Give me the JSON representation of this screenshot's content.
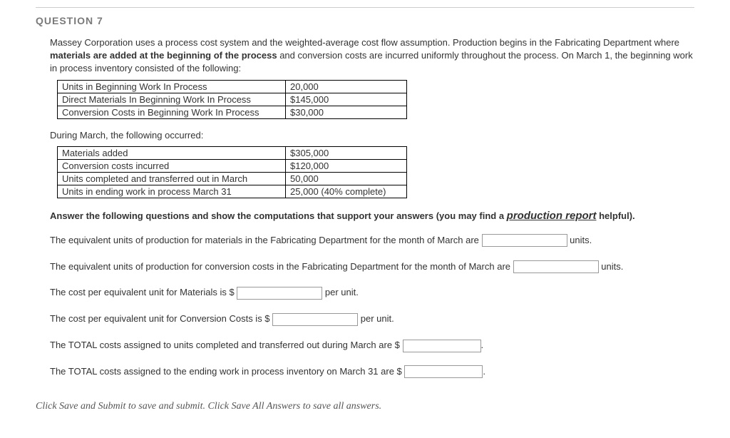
{
  "header": {
    "title": "QUESTION 7"
  },
  "intro": {
    "p1a": "Massey Corporation uses a process cost system and the weighted-average cost flow assumption. Production begins in the Fabricating Department where ",
    "p1b": "materials are added at the beginning of the process",
    "p1c": " and conversion costs are incurred uniformly throughout the process. On March 1, the beginning work in process inventory consisted of the following:"
  },
  "table1": {
    "rows": [
      {
        "label": "Units in Beginning Work In Process",
        "value": "20,000"
      },
      {
        "label": "Direct Materials In Beginning Work In Process",
        "value": "$145,000"
      },
      {
        "label": "Conversion Costs in Beginning Work In Process",
        "value": "$30,000"
      }
    ],
    "col1_width": 320,
    "col2_width": 170,
    "border_color": "#000000"
  },
  "mid_text": "During March, the following occurred:",
  "table2": {
    "rows": [
      {
        "label": "Materials added",
        "value": "$305,000"
      },
      {
        "label": "Conversion costs incurred",
        "value": "$120,000"
      },
      {
        "label": "Units completed and transferred out in March",
        "value": "50,000"
      },
      {
        "label": "Units in ending work in process March 31",
        "value": "25,000 (40% complete)"
      }
    ],
    "col1_width": 320,
    "col2_width": 170,
    "border_color": "#000000"
  },
  "answer_heading": {
    "pre": "Answer the following questions and show the computations that support your answers (you may find a ",
    "link": "production report",
    "post": " helpful)."
  },
  "lines": {
    "l1a": "The equivalent units of production for materials in the Fabricating Department for the month of March are ",
    "l1b": " units.",
    "l2a": "The equivalent units of production for conversion costs in the Fabricating Department for the month of March are ",
    "l2b": " units.",
    "l3a": "The cost per equivalent unit for Materials is $ ",
    "l3b": " per unit.",
    "l4a": "The cost per equivalent unit for Conversion Costs is $ ",
    "l4b": " per unit.",
    "l5a": "The TOTAL costs assigned to units completed and transferred out during March are $ ",
    "l5b": ".",
    "l6a": "The TOTAL costs assigned to the ending work in process inventory on March 31 are $ ",
    "l6b": "."
  },
  "footer": "Click Save and Submit to save and submit. Click Save All Answers to save all answers.",
  "style": {
    "title_color": "#7a7a7a",
    "text_color": "#333333",
    "input_border": "#999999",
    "background": "#ffffff",
    "font_size_base": 13
  }
}
